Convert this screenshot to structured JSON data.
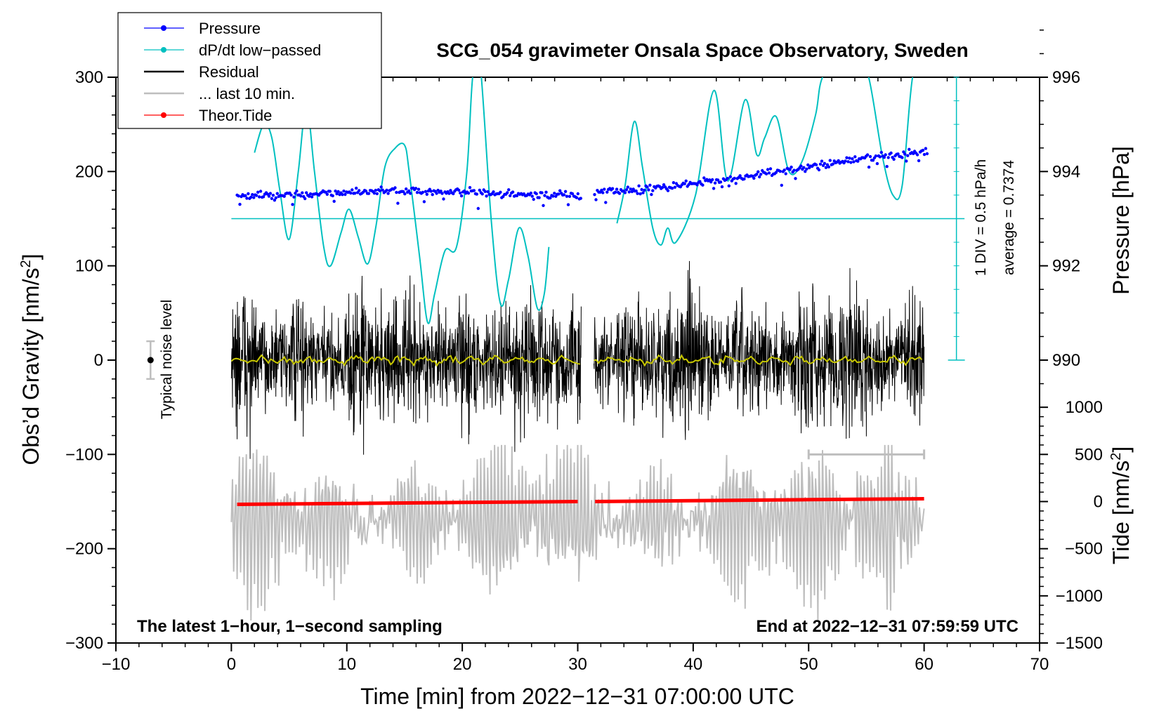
{
  "chart_data": {
    "type": "line",
    "title": "SCG_054 gravimeter Onsala Space Observatory, Sweden",
    "xlabel": "Time [min] from 2022−12−31 07:00:00 UTC",
    "ylabel_left": "Obs’d Gravity [nm/s²]",
    "ylabel_left_main": "Obs’d Gravity [nm/s",
    "ylabel_left_sup": "2",
    "ylabel_left_tail": "]",
    "ylabel_right_top": "Pressure [hPa]",
    "ylabel_right_bottom": "Tide [nm/s²]",
    "ylabel_right_bottom_main": "Tide [nm/s",
    "ylabel_right_bottom_sup": "2",
    "ylabel_right_bottom_tail": "]",
    "xlim": [
      -10,
      70
    ],
    "ylim_left": [
      -300,
      300
    ],
    "x_ticks": [
      "−10",
      "0",
      "10",
      "20",
      "30",
      "40",
      "50",
      "60",
      "70"
    ],
    "y_left_ticks": [
      "300",
      "200",
      "100",
      "0",
      "−100",
      "−200",
      "−300"
    ],
    "y_left_tick_values": [
      300,
      200,
      100,
      0,
      -100,
      -200,
      -300
    ],
    "pressure_ticks": [
      "996",
      "994",
      "992",
      "990"
    ],
    "pressure_tick_values": [
      996,
      994,
      992,
      990
    ],
    "pressure_reference_hPa": 993,
    "pressure_hpa_per_grav_unit": 0.02,
    "tide_ticks": [
      "1000",
      "500",
      "0",
      "−500",
      "−1000",
      "−1500"
    ],
    "tide_tick_values": [
      1000,
      500,
      0,
      -500,
      -1000,
      -1500
    ],
    "tide_offset_grav": -150,
    "tide_grav_per_unit": 0.1,
    "legend": [
      {
        "label": "Pressure",
        "color": "#0000ff",
        "style": "dot-line"
      },
      {
        "label": "dP/dt low−passed",
        "color": "#00c0c0",
        "style": "dot-line"
      },
      {
        "label": "Residual",
        "color": "#000000",
        "style": "line"
      },
      {
        "label": "... last 10 min.",
        "color": "#bebebe",
        "style": "line"
      },
      {
        "label": "Theor.Tide",
        "color": "#ff0000",
        "style": "dot-line"
      }
    ],
    "annotations": {
      "bottom_left": "The latest 1−hour, 1−second sampling",
      "bottom_right": "End at 2022−12−31 07:59:59 UTC",
      "noise": "Typical noise level",
      "dpdt_scale": "1 DIV = 0.5 hPa/h",
      "dpdt_average": "average = 0.7374"
    },
    "noise_bar": {
      "x": -7,
      "center": 0,
      "half_range": 20
    },
    "last10_bar": {
      "x_start": 50,
      "x_end": 60,
      "y": -100
    },
    "series": [
      {
        "name": "Pressure",
        "units": "hPa",
        "color": "#0000ff",
        "x": [
          0.5,
          5,
          10,
          15,
          20,
          25,
          30,
          31.5,
          35,
          40,
          45,
          50,
          55,
          60
        ],
        "y": [
          993.5,
          993.5,
          993.55,
          993.6,
          993.55,
          993.5,
          993.5,
          993.55,
          993.6,
          993.75,
          993.9,
          994.1,
          994.3,
          994.4
        ],
        "gap": [
          30.3,
          31.4
        ]
      },
      {
        "name": "dP/dt low−passed",
        "color": "#00c0c0",
        "x": [
          2,
          2.8,
          3.5,
          4.2,
          5.0,
          5.8,
          6.5,
          7.2,
          8,
          8.6,
          9.5,
          10.2,
          11,
          11.8,
          12.5,
          13.3,
          14.2,
          15,
          15.4,
          16.3,
          17,
          17.6,
          18.5,
          19.5,
          20.4,
          20.9,
          21.5,
          22.5,
          23.3,
          24,
          24.9,
          25.7,
          26.5,
          27.1,
          27.5,
          33.4,
          34.1,
          34.9,
          35.6,
          36.5,
          37.2,
          37.8,
          38.5,
          40.2,
          41.8,
          43,
          44.5,
          45.5,
          46.2,
          47.2,
          48.3,
          49.4,
          50.6,
          51.2,
          53,
          54.2,
          55.2,
          56.4,
          57.3,
          58.1,
          59,
          60
        ],
        "y": [
          220,
          250,
          236,
          180,
          128,
          200,
          270,
          200,
          120,
          100,
          135,
          160,
          130,
          102,
          140,
          205,
          225,
          228,
          200,
          110,
          40,
          70,
          116,
          120,
          200,
          300,
          320,
          150,
          60,
          85,
          140,
          110,
          55,
          70,
          120,
          145,
          185,
          253,
          205,
          140,
          122,
          140,
          125,
          175,
          286,
          190,
          276,
          218,
          236,
          258,
          200,
          210,
          260,
          300,
          330,
          318,
          300,
          215,
          175,
          185,
          300,
          320
        ],
        "gap": [
          27.6,
          33.3
        ]
      },
      {
        "name": "Residual",
        "color": "#000000",
        "x_range": [
          0,
          60
        ],
        "gap": [
          30.3,
          31.4
        ],
        "amplitude_nm_s2": [
          -105,
          105
        ],
        "smoothed_color": "#c8c800",
        "smoothed_level": 0
      },
      {
        "name": "... last 10 min.",
        "color": "#bebebe",
        "offset_nm_s2": -170,
        "x_range": [
          0,
          60
        ],
        "amplitude_nm_s2": [
          -280,
          -90
        ]
      },
      {
        "name": "Theor.Tide",
        "units": "nm/s²",
        "color": "#ff0000",
        "x": [
          0.5,
          10,
          20,
          30,
          31.5,
          40,
          50,
          60
        ],
        "y": [
          -30,
          -20,
          -10,
          0,
          0,
          10,
          20,
          30
        ]
      }
    ]
  }
}
